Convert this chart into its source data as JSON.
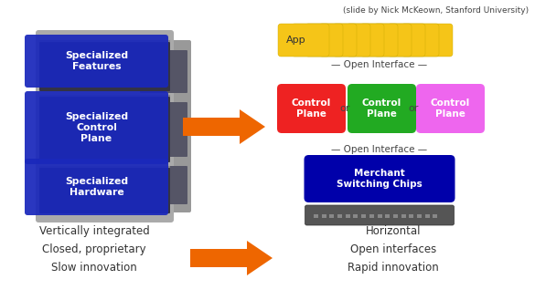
{
  "title_credit": "(slide by Nick McKeown, Stanford University)",
  "left_labels": [
    "Specialized\nFeatures",
    "Specialized\nControl\nPlane",
    "Specialized\nHardware"
  ],
  "left_text": [
    "Vertically integrated",
    "Closed, proprietary",
    "Slow innovation"
  ],
  "right_text": [
    "Horizontal",
    "Open interfaces",
    "Rapid innovation"
  ],
  "control_plane_colors": [
    "#ee2222",
    "#22aa22",
    "#ee66ee"
  ],
  "control_plane_label": "Control\nPlane",
  "app_color": "#f5c518",
  "merchant_color": "#0000aa",
  "merchant_label": "Merchant\nSwitching Chips",
  "open_interface_text": "— Open Interface —",
  "arrow_color": "#ee6600",
  "background_color": "#ffffff",
  "blue_label_color": "#1a28bb"
}
